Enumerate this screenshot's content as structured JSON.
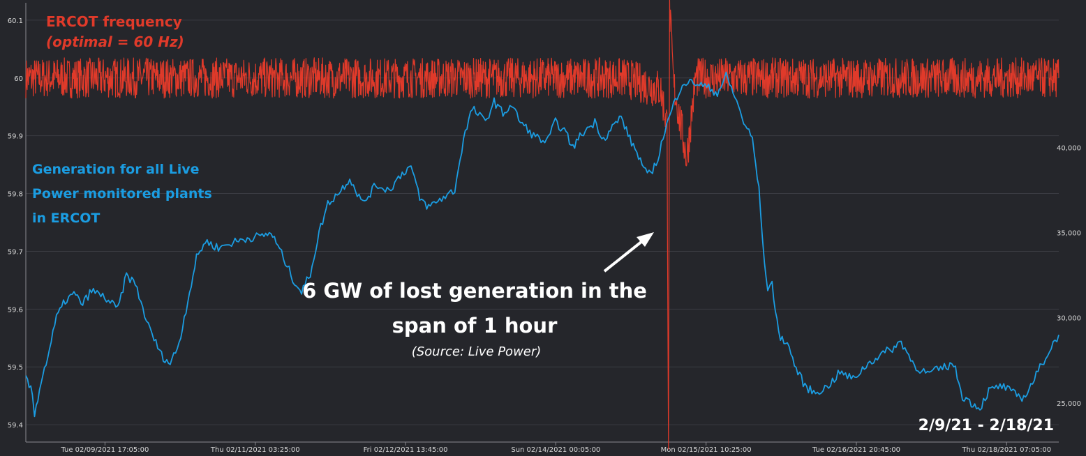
{
  "annotations": {
    "ercot_title": "ERCOT frequency",
    "ercot_subtitle": "(optimal = 60 Hz)",
    "generation_label": "Generation for all Live Power monitored plants in ERCOT",
    "callout": "6 GW of lost generation in the span of 1 hour",
    "source": "(Source: Live Power)",
    "date_range": "2/9/21 - 2/18/21"
  },
  "colors": {
    "frequency": "#e03a2a",
    "generation": "#1b9de2",
    "background": "#25262b",
    "grid": "#3a3b42",
    "axis_text": "#d8d8d8"
  },
  "chart_data": {
    "type": "line",
    "x_range": [
      "2021-02-08 23:00",
      "2021-02-18 19:00"
    ],
    "x_ticks": [
      {
        "t": "2021-02-09 17:05",
        "label": "Tue 02/09/2021 17:05:00"
      },
      {
        "t": "2021-02-11 03:25",
        "label": "Thu 02/11/2021 03:25:00"
      },
      {
        "t": "2021-02-12 13:45",
        "label": "Fri 02/12/2021 13:45:00"
      },
      {
        "t": "2021-02-14 00:05",
        "label": "Sun 02/14/2021 00:05:00"
      },
      {
        "t": "2021-02-15 10:25",
        "label": "Mon 02/15/2021 10:25:00"
      },
      {
        "t": "2021-02-16 20:45",
        "label": "Tue 02/16/2021 20:45:00"
      },
      {
        "t": "2021-02-18 07:05",
        "label": "Thu 02/18/2021 07:05:00"
      }
    ],
    "y_left": {
      "ticks": [
        59.4,
        59.5,
        59.6,
        59.7,
        59.8,
        59.9,
        60,
        60.1
      ],
      "tick_labels": [
        "59.4",
        "59.5",
        "59.6",
        "59.7",
        "59.8",
        "59.9",
        "60",
        "60.1"
      ],
      "range": [
        59.37,
        60.13
      ]
    },
    "y_right": {
      "ticks": [
        25000,
        30000,
        35000,
        40000
      ],
      "tick_labels": [
        "25,000",
        "30,000",
        "35,000",
        "40,000"
      ],
      "range": [
        22700,
        48500
      ]
    },
    "grid": true,
    "series": [
      {
        "id": "frequency",
        "axis": "left",
        "baseline": 60.0,
        "noise": 0.035,
        "points": [
          [
            "2021-02-08 23:00",
            60.0
          ],
          [
            "2021-02-09 04:00",
            60.0
          ],
          [
            "2021-02-10 00:00",
            60.0
          ],
          [
            "2021-02-11 00:00",
            60.0
          ],
          [
            "2021-02-12 00:00",
            60.0
          ],
          [
            "2021-02-13 00:00",
            60.0
          ],
          [
            "2021-02-14 00:00",
            60.0
          ],
          [
            "2021-02-14 16:00",
            60.0
          ],
          [
            "2021-02-15 00:00",
            59.98
          ],
          [
            "2021-02-15 01:30",
            59.92
          ],
          [
            "2021-02-15 01:50",
            59.38
          ],
          [
            "2021-02-15 02:05",
            60.12
          ],
          [
            "2021-02-15 03:00",
            59.99
          ],
          [
            "2021-02-15 06:00",
            59.86
          ],
          [
            "2021-02-15 08:00",
            60.0
          ],
          [
            "2021-02-16 00:00",
            60.0
          ],
          [
            "2021-02-17 00:00",
            60.0
          ],
          [
            "2021-02-18 00:00",
            60.0
          ],
          [
            "2021-02-18 19:00",
            60.0
          ]
        ]
      },
      {
        "id": "generation",
        "axis": "right",
        "points": [
          [
            "2021-02-08 23:00",
            26500
          ],
          [
            "2021-02-09 00:30",
            25500
          ],
          [
            "2021-02-09 01:00",
            24300
          ],
          [
            "2021-02-09 02:30",
            26300
          ],
          [
            "2021-02-09 04:00",
            27700
          ],
          [
            "2021-02-09 06:00",
            30000
          ],
          [
            "2021-02-09 08:00",
            31000
          ],
          [
            "2021-02-09 10:00",
            31400
          ],
          [
            "2021-02-09 12:00",
            30800
          ],
          [
            "2021-02-09 14:00",
            31600
          ],
          [
            "2021-02-09 17:00",
            31200
          ],
          [
            "2021-02-09 20:00",
            30500
          ],
          [
            "2021-02-09 22:00",
            32500
          ],
          [
            "2021-02-10 00:00",
            32000
          ],
          [
            "2021-02-10 03:00",
            29500
          ],
          [
            "2021-02-10 06:00",
            27800
          ],
          [
            "2021-02-10 08:00",
            27300
          ],
          [
            "2021-02-10 10:00",
            28500
          ],
          [
            "2021-02-10 12:00",
            31000
          ],
          [
            "2021-02-10 14:00",
            33500
          ],
          [
            "2021-02-10 16:00",
            34500
          ],
          [
            "2021-02-10 19:00",
            34100
          ],
          [
            "2021-02-10 22:00",
            34400
          ],
          [
            "2021-02-11 02:00",
            34700
          ],
          [
            "2021-02-11 05:00",
            34800
          ],
          [
            "2021-02-11 07:00",
            35000
          ],
          [
            "2021-02-11 09:00",
            34000
          ],
          [
            "2021-02-11 12:00",
            32300
          ],
          [
            "2021-02-11 14:00",
            31500
          ],
          [
            "2021-02-11 16:00",
            32600
          ],
          [
            "2021-02-11 18:00",
            35000
          ],
          [
            "2021-02-11 20:00",
            36700
          ],
          [
            "2021-02-11 23:00",
            37500
          ],
          [
            "2021-02-12 01:00",
            38200
          ],
          [
            "2021-02-12 04:00",
            36700
          ],
          [
            "2021-02-12 07:00",
            37800
          ],
          [
            "2021-02-12 10:00",
            37500
          ],
          [
            "2021-02-12 13:00",
            38500
          ],
          [
            "2021-02-12 15:00",
            38900
          ],
          [
            "2021-02-12 17:00",
            37000
          ],
          [
            "2021-02-12 19:00",
            36500
          ],
          [
            "2021-02-12 22:00",
            37000
          ],
          [
            "2021-02-13 01:00",
            37500
          ],
          [
            "2021-02-13 03:00",
            40500
          ],
          [
            "2021-02-13 05:00",
            42300
          ],
          [
            "2021-02-13 08:00",
            41500
          ],
          [
            "2021-02-13 10:00",
            42700
          ],
          [
            "2021-02-13 12:00",
            42000
          ],
          [
            "2021-02-13 14:00",
            42500
          ],
          [
            "2021-02-13 16:00",
            41500
          ],
          [
            "2021-02-13 19:00",
            40700
          ],
          [
            "2021-02-13 22:00",
            40300
          ],
          [
            "2021-02-14 00:00",
            41500
          ],
          [
            "2021-02-14 02:00",
            41000
          ],
          [
            "2021-02-14 04:00",
            40000
          ],
          [
            "2021-02-14 06:00",
            40800
          ],
          [
            "2021-02-14 09:00",
            41500
          ],
          [
            "2021-02-14 11:00",
            40500
          ],
          [
            "2021-02-14 13:00",
            41200
          ],
          [
            "2021-02-14 15:00",
            41800
          ],
          [
            "2021-02-14 17:00",
            40500
          ],
          [
            "2021-02-14 19:00",
            39500
          ],
          [
            "2021-02-14 21:00",
            38300
          ],
          [
            "2021-02-14 23:00",
            39000
          ],
          [
            "2021-02-15 01:00",
            41000
          ],
          [
            "2021-02-15 03:00",
            42500
          ],
          [
            "2021-02-15 05:00",
            43800
          ],
          [
            "2021-02-15 08:00",
            43800
          ],
          [
            "2021-02-15 11:00",
            43500
          ],
          [
            "2021-02-15 13:00",
            43200
          ],
          [
            "2021-02-15 15:00",
            44200
          ],
          [
            "2021-02-15 17:00",
            43000
          ],
          [
            "2021-02-15 19:00",
            41500
          ],
          [
            "2021-02-15 21:00",
            40500
          ],
          [
            "2021-02-15 22:30",
            37500
          ],
          [
            "2021-02-15 23:15",
            35000
          ],
          [
            "2021-02-15 23:45",
            33000
          ],
          [
            "2021-02-16 00:30",
            31800
          ],
          [
            "2021-02-16 01:30",
            32000
          ],
          [
            "2021-02-16 03:00",
            29000
          ],
          [
            "2021-02-16 05:00",
            28500
          ],
          [
            "2021-02-16 07:00",
            27000
          ],
          [
            "2021-02-16 09:00",
            26000
          ],
          [
            "2021-02-16 11:00",
            25600
          ],
          [
            "2021-02-16 14:00",
            25900
          ],
          [
            "2021-02-16 17:00",
            26800
          ],
          [
            "2021-02-16 20:00",
            26400
          ],
          [
            "2021-02-16 23:00",
            27200
          ],
          [
            "2021-02-17 02:00",
            27800
          ],
          [
            "2021-02-17 05:00",
            28200
          ],
          [
            "2021-02-17 07:00",
            28600
          ],
          [
            "2021-02-17 10:00",
            27200
          ],
          [
            "2021-02-17 13:00",
            26700
          ],
          [
            "2021-02-17 16:00",
            27000
          ],
          [
            "2021-02-17 19:00",
            27300
          ],
          [
            "2021-02-17 21:00",
            25400
          ],
          [
            "2021-02-17 23:00",
            25000
          ],
          [
            "2021-02-18 01:00",
            24700
          ],
          [
            "2021-02-18 03:00",
            25700
          ],
          [
            "2021-02-18 06:00",
            26000
          ],
          [
            "2021-02-18 09:00",
            25500
          ],
          [
            "2021-02-18 11:00",
            25300
          ],
          [
            "2021-02-18 13:00",
            26200
          ],
          [
            "2021-02-18 16:00",
            27700
          ],
          [
            "2021-02-18 19:00",
            29000
          ]
        ]
      }
    ]
  }
}
